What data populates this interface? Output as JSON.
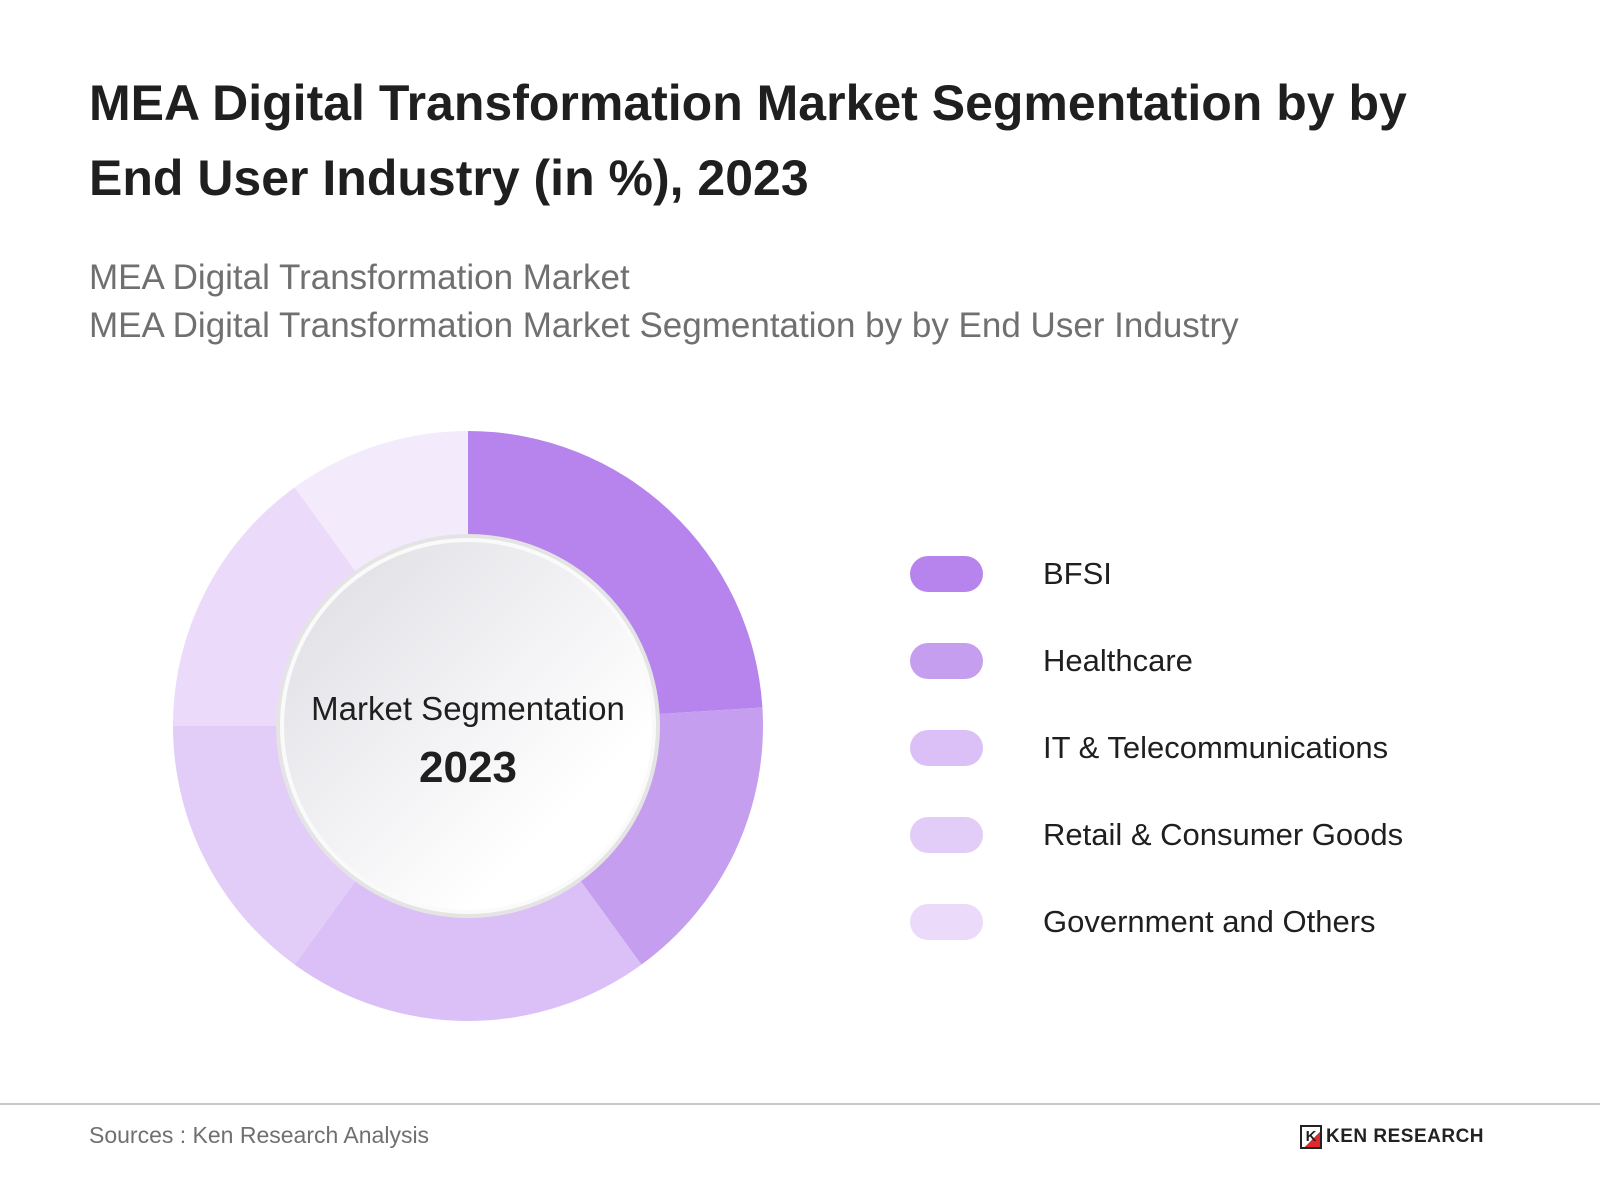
{
  "title": "MEA Digital Transformation Market Segmentation by by End User Industry (in %), 2023",
  "subtitle_1": "MEA Digital Transformation Market",
  "subtitle_2": "MEA Digital Transformation Market Segmentation by by End User Industry",
  "center_label": "Market Segmentation",
  "center_year": "2023",
  "source": "Sources : Ken Research Analysis",
  "logo_text": "KEN RESEARCH",
  "chart_data": {
    "type": "pie",
    "variant": "donut",
    "title": "MEA Digital Transformation Market Segmentation by by End User Industry (in %), 2023",
    "legend_position": "right",
    "slices": [
      {
        "label": "BFSI",
        "value": 24,
        "color": "#b684ec"
      },
      {
        "label": "Healthcare",
        "value": 16,
        "color": "#c69ef0"
      },
      {
        "label": "IT & Telecommunications",
        "value": 20,
        "color": "#dbc0f7"
      },
      {
        "label": "Retail & Consumer Goods",
        "value": 15,
        "color": "#e2cdf8"
      },
      {
        "label": "Government and Others",
        "value": 15,
        "color": "#ebdafa"
      },
      {
        "label": "",
        "value": 10,
        "color": "#f3ebfc"
      }
    ]
  }
}
